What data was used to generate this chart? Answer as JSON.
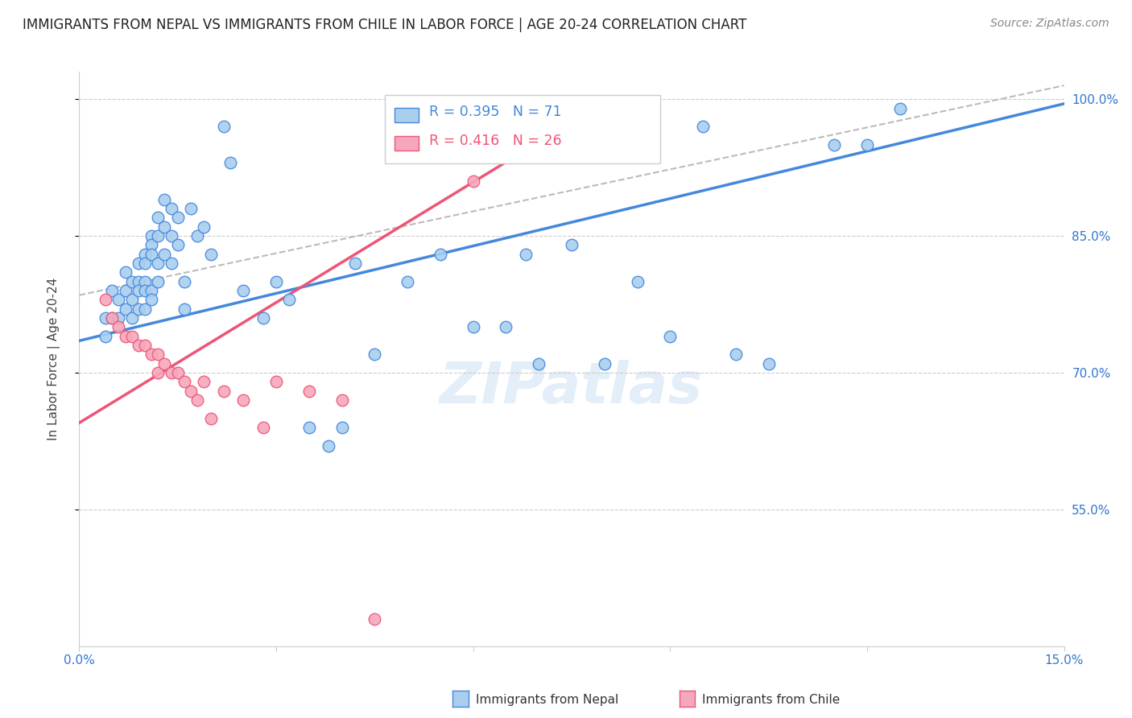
{
  "title": "IMMIGRANTS FROM NEPAL VS IMMIGRANTS FROM CHILE IN LABOR FORCE | AGE 20-24 CORRELATION CHART",
  "source": "Source: ZipAtlas.com",
  "ylabel": "In Labor Force | Age 20-24",
  "xmin": 0.0,
  "xmax": 0.15,
  "ymin": 0.4,
  "ymax": 1.03,
  "nepal_color": "#aacfee",
  "chile_color": "#f5a8bc",
  "nepal_R": 0.395,
  "nepal_N": 71,
  "chile_R": 0.416,
  "chile_N": 26,
  "nepal_line_color": "#4488dd",
  "chile_line_color": "#ee5577",
  "gray_trend_color": "#bbbbbb",
  "nepal_scatter_x": [
    0.004,
    0.004,
    0.005,
    0.005,
    0.006,
    0.006,
    0.007,
    0.007,
    0.007,
    0.008,
    0.008,
    0.008,
    0.009,
    0.009,
    0.009,
    0.009,
    0.01,
    0.01,
    0.01,
    0.01,
    0.01,
    0.011,
    0.011,
    0.011,
    0.011,
    0.011,
    0.012,
    0.012,
    0.012,
    0.012,
    0.013,
    0.013,
    0.013,
    0.014,
    0.014,
    0.014,
    0.015,
    0.015,
    0.016,
    0.016,
    0.017,
    0.018,
    0.019,
    0.02,
    0.022,
    0.023,
    0.025,
    0.028,
    0.03,
    0.032,
    0.035,
    0.038,
    0.04,
    0.042,
    0.045,
    0.05,
    0.055,
    0.06,
    0.065,
    0.068,
    0.07,
    0.075,
    0.08,
    0.085,
    0.09,
    0.095,
    0.1,
    0.105,
    0.115,
    0.12,
    0.125
  ],
  "nepal_scatter_y": [
    0.76,
    0.74,
    0.79,
    0.76,
    0.78,
    0.76,
    0.81,
    0.79,
    0.77,
    0.8,
    0.78,
    0.76,
    0.82,
    0.8,
    0.79,
    0.77,
    0.83,
    0.82,
    0.8,
    0.79,
    0.77,
    0.85,
    0.84,
    0.83,
    0.79,
    0.78,
    0.87,
    0.85,
    0.82,
    0.8,
    0.89,
    0.86,
    0.83,
    0.88,
    0.85,
    0.82,
    0.87,
    0.84,
    0.8,
    0.77,
    0.88,
    0.85,
    0.86,
    0.83,
    0.97,
    0.93,
    0.79,
    0.76,
    0.8,
    0.78,
    0.64,
    0.62,
    0.64,
    0.82,
    0.72,
    0.8,
    0.83,
    0.75,
    0.75,
    0.83,
    0.71,
    0.84,
    0.71,
    0.8,
    0.74,
    0.97,
    0.72,
    0.71,
    0.95,
    0.95,
    0.99
  ],
  "chile_scatter_x": [
    0.004,
    0.005,
    0.006,
    0.007,
    0.008,
    0.009,
    0.01,
    0.011,
    0.012,
    0.012,
    0.013,
    0.014,
    0.015,
    0.016,
    0.017,
    0.018,
    0.019,
    0.02,
    0.022,
    0.025,
    0.028,
    0.03,
    0.035,
    0.04,
    0.045,
    0.06
  ],
  "chile_scatter_y": [
    0.78,
    0.76,
    0.75,
    0.74,
    0.74,
    0.73,
    0.73,
    0.72,
    0.72,
    0.7,
    0.71,
    0.7,
    0.7,
    0.69,
    0.68,
    0.67,
    0.69,
    0.65,
    0.68,
    0.67,
    0.64,
    0.69,
    0.68,
    0.67,
    0.43,
    0.91
  ],
  "nepal_trend_x": [
    0.0,
    0.15
  ],
  "nepal_trend_y": [
    0.735,
    0.995
  ],
  "chile_trend_x": [
    0.0,
    0.075
  ],
  "chile_trend_y": [
    0.645,
    0.975
  ],
  "gray_trend_x": [
    0.0,
    0.15
  ],
  "gray_trend_y": [
    0.785,
    1.015
  ],
  "ytick_positions": [
    0.55,
    0.7,
    0.85,
    1.0
  ],
  "ytick_labels": [
    "55.0%",
    "70.0%",
    "85.0%",
    "100.0%"
  ],
  "xtick_positions": [
    0.0,
    0.03,
    0.06,
    0.09,
    0.12,
    0.15
  ],
  "xtick_labels": [
    "0.0%",
    "",
    "",
    "",
    "",
    "15.0%"
  ]
}
